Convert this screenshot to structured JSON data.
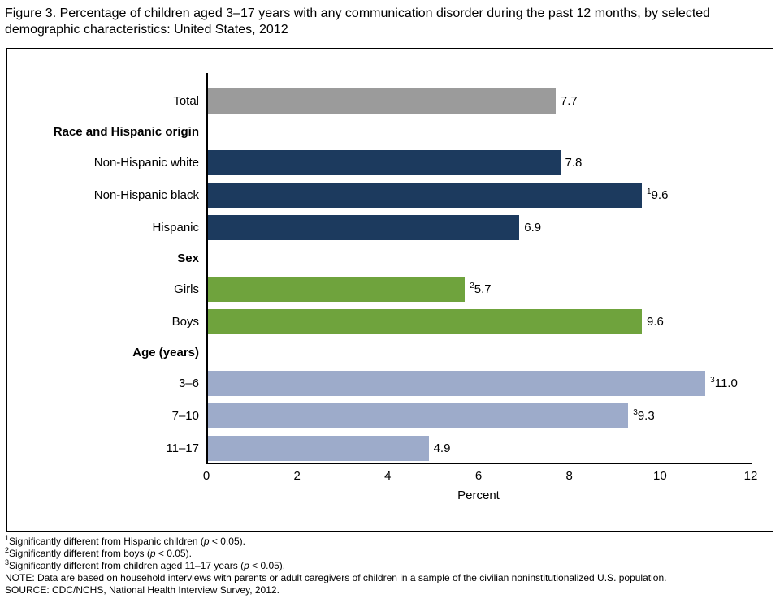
{
  "chart_data": {
    "type": "bar",
    "orientation": "horizontal",
    "title": "Figure 3. Percentage of children aged 3–17 years with any communication disorder during the past 12 months, by selected demographic characteristics: United States, 2012",
    "xlabel": "Percent",
    "xlim": [
      0,
      12
    ],
    "ticks": [
      "0",
      "2",
      "4",
      "6",
      "8",
      "10",
      "12"
    ],
    "tick_values": [
      0,
      2,
      4,
      6,
      8,
      10,
      12
    ],
    "grid": false,
    "legend": false,
    "colors": {
      "total": "#9b9b9b",
      "race": "#1c3a5e",
      "sex": "#6fa33d",
      "age": "#9dabca"
    },
    "rows": [
      {
        "kind": "bar",
        "label": "Total",
        "value": 7.7,
        "display": "7.7",
        "sup": "",
        "group": "total"
      },
      {
        "kind": "header",
        "label": "Race and Hispanic origin"
      },
      {
        "kind": "bar",
        "label": "Non-Hispanic white",
        "value": 7.8,
        "display": "7.8",
        "sup": "",
        "group": "race"
      },
      {
        "kind": "bar",
        "label": "Non-Hispanic black",
        "value": 9.6,
        "display": "9.6",
        "sup": "1",
        "group": "race"
      },
      {
        "kind": "bar",
        "label": "Hispanic",
        "value": 6.9,
        "display": "6.9",
        "sup": "",
        "group": "race"
      },
      {
        "kind": "header",
        "label": "Sex"
      },
      {
        "kind": "bar",
        "label": "Girls",
        "value": 5.7,
        "display": "5.7",
        "sup": "2",
        "group": "sex"
      },
      {
        "kind": "bar",
        "label": "Boys",
        "value": 9.6,
        "display": "9.6",
        "sup": "",
        "group": "sex"
      },
      {
        "kind": "header",
        "label": "Age (years)"
      },
      {
        "kind": "bar",
        "label": "3–6",
        "value": 11.0,
        "display": "11.0",
        "sup": "3",
        "group": "age"
      },
      {
        "kind": "bar",
        "label": "7–10",
        "value": 9.3,
        "display": "9.3",
        "sup": "3",
        "group": "age"
      },
      {
        "kind": "bar",
        "label": "11–17",
        "value": 4.9,
        "display": "4.9",
        "sup": "",
        "group": "age"
      }
    ]
  },
  "footnotes": [
    {
      "sup": "1",
      "pre": "Significantly different from Hispanic children (",
      "p": "p",
      "post": " < 0.05)."
    },
    {
      "sup": "2",
      "pre": "Significantly different from boys (",
      "p": "p",
      "post": " < 0.05)."
    },
    {
      "sup": "3",
      "pre": "Significantly different from children aged 11–17 years (",
      "p": "p",
      "post": " < 0.05)."
    }
  ],
  "notes": {
    "note": "NOTE: Data are based on household interviews with parents or adult caregivers of children in a sample of the civilian noninstitutionalized U.S. population.",
    "source": "SOURCE: CDC/NCHS, National Health Interview Survey, 2012."
  }
}
